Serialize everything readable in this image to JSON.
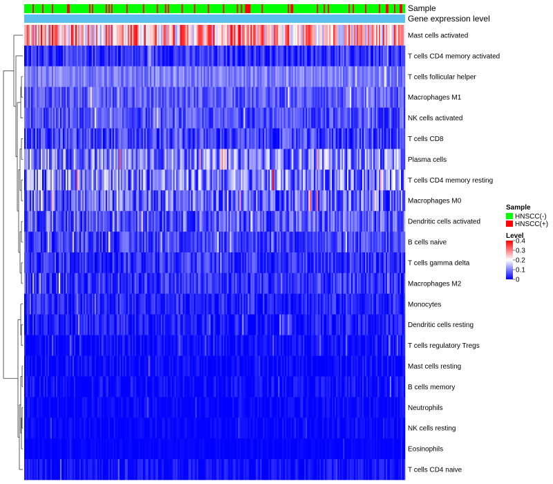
{
  "chart_data": {
    "type": "heatmap",
    "annotations": {
      "sample_label": "Sample",
      "gene_label": "Gene expression level"
    },
    "rows": [
      {
        "name": "Mast cells activated",
        "mean": 0.26,
        "spread": 0.14
      },
      {
        "name": "T cells CD4 memory activated",
        "mean": 0.04,
        "spread": 0.05
      },
      {
        "name": "T cells follicular helper",
        "mean": 0.1,
        "spread": 0.04
      },
      {
        "name": "Macrophages M1",
        "mean": 0.07,
        "spread": 0.05
      },
      {
        "name": "NK cells activated",
        "mean": 0.06,
        "spread": 0.05
      },
      {
        "name": "T cells CD8",
        "mean": 0.05,
        "spread": 0.06
      },
      {
        "name": "Plasma cells",
        "mean": 0.1,
        "spread": 0.09
      },
      {
        "name": "T cells CD4 memory resting",
        "mean": 0.1,
        "spread": 0.1
      },
      {
        "name": "Macrophages M0",
        "mean": 0.08,
        "spread": 0.08
      },
      {
        "name": "Dendritic cells activated",
        "mean": 0.07,
        "spread": 0.07
      },
      {
        "name": "B cells naive",
        "mean": 0.05,
        "spread": 0.05
      },
      {
        "name": "T cells gamma delta",
        "mean": 0.04,
        "spread": 0.05
      },
      {
        "name": "Macrophages M2",
        "mean": 0.04,
        "spread": 0.05
      },
      {
        "name": "Monocytes",
        "mean": 0.03,
        "spread": 0.04
      },
      {
        "name": "Dendritic cells resting",
        "mean": 0.02,
        "spread": 0.04
      },
      {
        "name": "T cells regulatory  Tregs",
        "mean": 0.01,
        "spread": 0.03
      },
      {
        "name": "Mast cells resting",
        "mean": 0.005,
        "spread": 0.03
      },
      {
        "name": "B cells memory",
        "mean": 0.01,
        "spread": 0.03
      },
      {
        "name": "Neutrophils",
        "mean": 0.005,
        "spread": 0.02
      },
      {
        "name": "NK cells resting",
        "mean": 0.003,
        "spread": 0.02
      },
      {
        "name": "Eosinophils",
        "mean": 0.002,
        "spread": 0.01
      },
      {
        "name": "T cells CD4 naive",
        "mean": 0.01,
        "spread": 0.03
      }
    ],
    "n_samples": 276,
    "sample_groups": [
      "HNSCC(-)",
      "HNSCC(+)"
    ],
    "sample_group_colors": [
      "#00ff00",
      "#ff0000"
    ],
    "positive_fraction": 0.2,
    "gene_expression_color": "#5bc0f0",
    "color_scale": {
      "title": "Level",
      "min": 0,
      "max": 0.4,
      "ticks": [
        "0.4",
        "0.3",
        "0.2",
        "0.1",
        "0"
      ],
      "colors": [
        "#0000ff",
        "#ffffff",
        "#ff0000"
      ]
    },
    "legend": {
      "sample_title": "Sample",
      "level_title": "Level"
    },
    "dendrogram": "rows clustered, left side"
  }
}
